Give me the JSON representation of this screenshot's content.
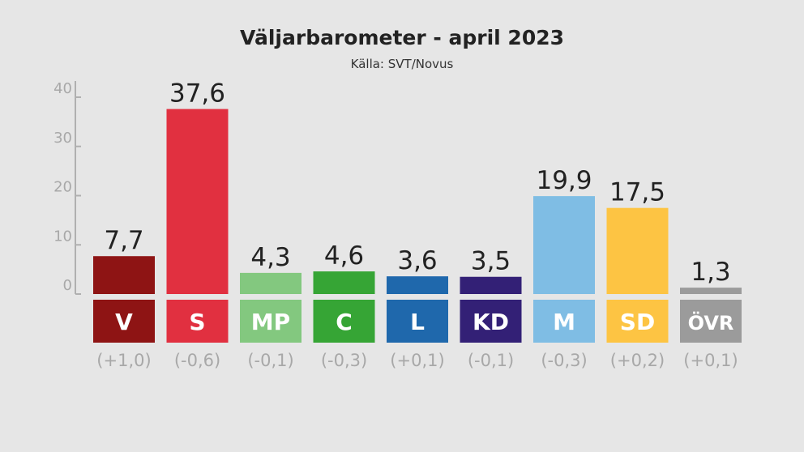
{
  "chart_data": {
    "type": "bar",
    "title": "Väljarbarometer - april 2023",
    "subtitle": "Källa: SVT/Novus",
    "xlabel": "",
    "ylabel": "",
    "ylim": [
      0,
      40
    ],
    "yticks": [
      "0",
      "10",
      "20",
      "30",
      "40"
    ],
    "grid": false,
    "categories": [
      "V",
      "S",
      "MP",
      "C",
      "L",
      "KD",
      "M",
      "SD",
      "ÖVR"
    ],
    "values": [
      7.7,
      37.6,
      4.3,
      4.6,
      3.6,
      3.5,
      19.9,
      17.5,
      1.3
    ],
    "value_labels": [
      "7,7",
      "37,6",
      "4,3",
      "4,6",
      "3,6",
      "3,5",
      "19,9",
      "17,5",
      "1,3"
    ],
    "changes": [
      "(+1,0)",
      "(-0,6)",
      "(-0,1)",
      "(-0,3)",
      "(+0,1)",
      "(-0,1)",
      "(-0,3)",
      "(+0,2)",
      "(+0,1)"
    ],
    "colors": [
      "#8e1414",
      "#e13040",
      "#83c87f",
      "#36a535",
      "#1f68ac",
      "#332076",
      "#7fbde4",
      "#fdc443",
      "#9b9b9b"
    ]
  }
}
